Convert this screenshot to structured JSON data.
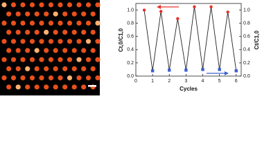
{
  "chart_data": {
    "type": "line",
    "x_label": "Cycles",
    "y_label": "Ct,0/C1,0",
    "y2_label": "Ct/C1,0",
    "xlim": [
      0,
      6.3
    ],
    "xticks": [
      0,
      1,
      2,
      3,
      4,
      5,
      6
    ],
    "ylim": [
      0,
      1.1
    ],
    "yticks": [
      {
        "value": 0,
        "label": "0.0"
      },
      0.2,
      0.4,
      0.6,
      0.8,
      {
        "value": 1,
        "label": "1.0"
      }
    ],
    "y2lim": [
      0,
      1.1
    ],
    "y2ticks": [
      {
        "value": 0,
        "label": "0.0"
      },
      0.2,
      0.4,
      0.6,
      0.8,
      {
        "value": 1,
        "label": "1.0"
      }
    ],
    "line_color": "#222222",
    "series": [
      {
        "x": [
          0.5,
          1,
          1.5,
          2,
          2.5,
          3,
          3.5,
          4,
          4.5,
          5,
          5.5,
          6
        ],
        "values": [
          1.0,
          0.08,
          0.98,
          0.09,
          0.87,
          0.09,
          1.05,
          0.1,
          1.05,
          0.1,
          0.97,
          0.08
        ],
        "marker_colors": [
          "#e8302a",
          "#3b5fd0",
          "#e8302a",
          "#3b5fd0",
          "#e8302a",
          "#3b5fd0",
          "#e8302a",
          "#3b5fd0",
          "#e8302a",
          "#3b5fd0",
          "#e8302a",
          "#3b5fd0"
        ]
      }
    ]
  }
}
